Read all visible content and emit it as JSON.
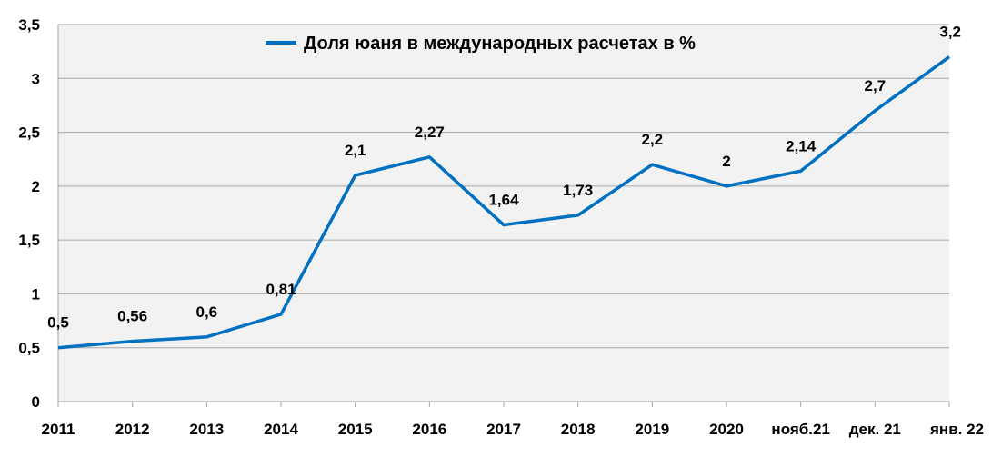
{
  "chart_data": {
    "type": "line",
    "categories": [
      "2011",
      "2012",
      "2013",
      "2014",
      "2015",
      "2016",
      "2017",
      "2018",
      "2019",
      "2020",
      "нояб.21",
      "дек. 21",
      "янв. 22"
    ],
    "series": [
      {
        "name": "Доля юаня в международных расчетах в %",
        "values": [
          0.5,
          0.56,
          0.6,
          0.81,
          2.1,
          2.27,
          1.64,
          1.73,
          2.2,
          2,
          2.14,
          2.7,
          3.2
        ],
        "labels": [
          "0,5",
          "0,56",
          "0,6",
          "0,81",
          "2,1",
          "2,27",
          "1,64",
          "1,73",
          "2,2",
          "2",
          "2,14",
          "2,7",
          "3,2"
        ],
        "color": "#0070C0"
      }
    ],
    "y_ticks": [
      0,
      0.5,
      1,
      1.5,
      2,
      2.5,
      3,
      3.5
    ],
    "y_tick_labels": [
      "0",
      "0,5",
      "1",
      "1,5",
      "2",
      "2,5",
      "3",
      "3,5"
    ],
    "ylim": [
      0,
      3.5
    ],
    "grid": true,
    "legend_position": "top-center",
    "plot_background": "#F2F2F2",
    "gridline_color": "#A6A6A6"
  }
}
